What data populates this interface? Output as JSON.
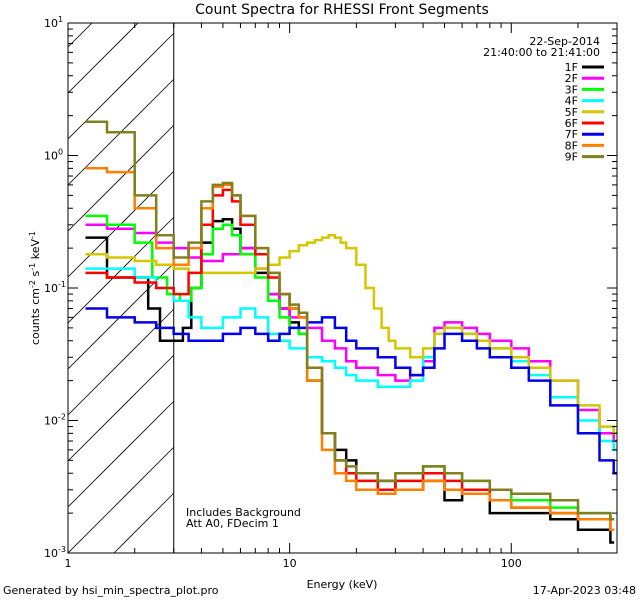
{
  "chart_data": {
    "type": "line",
    "title": "Count Spectra for RHESSI Front Segments",
    "xlabel": "Energy (keV)",
    "ylabel": {
      "base": "counts cm",
      "sup1": "-2",
      "mid1": " s",
      "sup2": "-1",
      "mid2": " keV",
      "sup3": "-1"
    },
    "x_scale": "log",
    "y_scale": "log",
    "xlim": [
      1.0,
      300.0
    ],
    "ylim": [
      0.001,
      10.0
    ],
    "x_major_ticks": [
      1,
      10,
      100
    ],
    "x_tick_labels": [
      "1",
      "10",
      "100"
    ],
    "y_major_ticks": [
      0.001,
      0.01,
      0.1,
      1,
      10
    ],
    "y_tick_labels": [
      {
        "base": "10",
        "exp": "-3"
      },
      {
        "base": "10",
        "exp": "-2"
      },
      {
        "base": "10",
        "exp": "-1"
      },
      {
        "base": "10",
        "exp": "0"
      },
      {
        "base": "10",
        "exp": "1"
      }
    ],
    "hatched_region_keV": [
      1.0,
      3.0
    ],
    "date": "22-Sep-2014",
    "time_range": "21:40:00 to 21:41:00",
    "annotation_lines": [
      "Includes Background",
      "Att A0, FDecim 1"
    ],
    "series": [
      {
        "name": "1F",
        "color": "#000000",
        "points": [
          [
            1.2,
            0.24
          ],
          [
            1.5,
            0.12
          ],
          [
            2,
            0.12
          ],
          [
            2.3,
            0.07
          ],
          [
            2.6,
            0.04
          ],
          [
            2.9,
            0.04
          ],
          [
            3.3,
            0.05
          ],
          [
            3.6,
            0.1
          ],
          [
            4,
            0.22
          ],
          [
            4.5,
            0.32
          ],
          [
            5,
            0.33
          ],
          [
            5.5,
            0.28
          ],
          [
            6,
            0.2
          ],
          [
            7,
            0.13
          ],
          [
            8,
            0.09
          ],
          [
            9,
            0.07
          ],
          [
            10,
            0.055
          ],
          [
            11,
            0.045
          ],
          [
            12,
            0.02
          ],
          [
            14,
            0.008
          ],
          [
            16,
            0.006
          ],
          [
            18,
            0.005
          ],
          [
            20,
            0.004
          ],
          [
            25,
            0.0035
          ],
          [
            30,
            0.003
          ],
          [
            40,
            0.0035
          ],
          [
            50,
            0.0025
          ],
          [
            60,
            0.003
          ],
          [
            80,
            0.002
          ],
          [
            100,
            0.002
          ],
          [
            150,
            0.0018
          ],
          [
            200,
            0.0015
          ],
          [
            280,
            0.0012
          ]
        ]
      },
      {
        "name": "2F",
        "color": "#ff00ff",
        "points": [
          [
            1.2,
            0.3
          ],
          [
            1.5,
            0.28
          ],
          [
            2,
            0.26
          ],
          [
            2.5,
            0.22
          ],
          [
            3,
            0.2
          ],
          [
            3.5,
            0.17
          ],
          [
            4,
            0.16
          ],
          [
            5,
            0.18
          ],
          [
            6,
            0.2
          ],
          [
            7,
            0.14
          ],
          [
            8,
            0.09
          ],
          [
            9,
            0.07
          ],
          [
            10,
            0.06
          ],
          [
            12,
            0.05
          ],
          [
            14,
            0.04
          ],
          [
            16,
            0.035
          ],
          [
            18,
            0.028
          ],
          [
            20,
            0.025
          ],
          [
            25,
            0.022
          ],
          [
            30,
            0.02
          ],
          [
            35,
            0.022
          ],
          [
            40,
            0.028
          ],
          [
            45,
            0.05
          ],
          [
            50,
            0.055
          ],
          [
            60,
            0.05
          ],
          [
            70,
            0.045
          ],
          [
            80,
            0.04
          ],
          [
            100,
            0.035
          ],
          [
            120,
            0.028
          ],
          [
            150,
            0.02
          ],
          [
            200,
            0.012
          ],
          [
            250,
            0.008
          ],
          [
            290,
            0.007
          ]
        ]
      },
      {
        "name": "3F",
        "color": "#00ff00",
        "points": [
          [
            1.2,
            0.35
          ],
          [
            1.5,
            0.3
          ],
          [
            2,
            0.22
          ],
          [
            2.4,
            0.12
          ],
          [
            2.8,
            0.09
          ],
          [
            3.2,
            0.08
          ],
          [
            3.6,
            0.1
          ],
          [
            4,
            0.18
          ],
          [
            4.5,
            0.28
          ],
          [
            5,
            0.3
          ],
          [
            5.5,
            0.25
          ],
          [
            6,
            0.18
          ],
          [
            7,
            0.12
          ],
          [
            8,
            0.08
          ],
          [
            9,
            0.06
          ],
          [
            10,
            0.05
          ],
          [
            11,
            0.045
          ],
          [
            12,
            0.02
          ],
          [
            14,
            0.008
          ],
          [
            16,
            0.005
          ],
          [
            18,
            0.004
          ],
          [
            20,
            0.0035
          ],
          [
            25,
            0.003
          ],
          [
            30,
            0.0035
          ],
          [
            40,
            0.0045
          ],
          [
            50,
            0.004
          ],
          [
            60,
            0.0035
          ],
          [
            80,
            0.003
          ],
          [
            100,
            0.0025
          ],
          [
            150,
            0.0022
          ],
          [
            200,
            0.002
          ],
          [
            280,
            0.0018
          ]
        ]
      },
      {
        "name": "4F",
        "color": "#00ffff",
        "points": [
          [
            1.2,
            0.14
          ],
          [
            1.5,
            0.14
          ],
          [
            2,
            0.12
          ],
          [
            2.5,
            0.1
          ],
          [
            3,
            0.08
          ],
          [
            3.5,
            0.06
          ],
          [
            4,
            0.05
          ],
          [
            5,
            0.06
          ],
          [
            6,
            0.07
          ],
          [
            7,
            0.06
          ],
          [
            8,
            0.045
          ],
          [
            9,
            0.04
          ],
          [
            10,
            0.035
          ],
          [
            12,
            0.03
          ],
          [
            14,
            0.028
          ],
          [
            16,
            0.025
          ],
          [
            18,
            0.022
          ],
          [
            20,
            0.02
          ],
          [
            25,
            0.018
          ],
          [
            30,
            0.018
          ],
          [
            35,
            0.02
          ],
          [
            40,
            0.03
          ],
          [
            45,
            0.045
          ],
          [
            50,
            0.05
          ],
          [
            60,
            0.045
          ],
          [
            70,
            0.04
          ],
          [
            80,
            0.035
          ],
          [
            100,
            0.028
          ],
          [
            120,
            0.022
          ],
          [
            150,
            0.015
          ],
          [
            200,
            0.01
          ],
          [
            250,
            0.007
          ],
          [
            290,
            0.006
          ]
        ]
      },
      {
        "name": "5F",
        "color": "#d4c700",
        "points": [
          [
            1.2,
            0.18
          ],
          [
            1.5,
            0.17
          ],
          [
            2,
            0.16
          ],
          [
            2.5,
            0.15
          ],
          [
            3,
            0.14
          ],
          [
            3.5,
            0.13
          ],
          [
            4,
            0.13
          ],
          [
            5,
            0.13
          ],
          [
            6,
            0.13
          ],
          [
            7,
            0.14
          ],
          [
            8,
            0.15
          ],
          [
            9,
            0.17
          ],
          [
            10,
            0.19
          ],
          [
            11,
            0.21
          ],
          [
            12,
            0.22
          ],
          [
            13,
            0.23
          ],
          [
            14,
            0.24
          ],
          [
            15,
            0.25
          ],
          [
            16,
            0.24
          ],
          [
            17,
            0.22
          ],
          [
            18,
            0.2
          ],
          [
            20,
            0.15
          ],
          [
            22,
            0.1
          ],
          [
            24,
            0.07
          ],
          [
            26,
            0.05
          ],
          [
            28,
            0.04
          ],
          [
            30,
            0.035
          ],
          [
            35,
            0.03
          ],
          [
            40,
            0.035
          ],
          [
            45,
            0.045
          ],
          [
            50,
            0.05
          ],
          [
            60,
            0.045
          ],
          [
            70,
            0.04
          ],
          [
            80,
            0.035
          ],
          [
            100,
            0.03
          ],
          [
            120,
            0.025
          ],
          [
            150,
            0.02
          ],
          [
            200,
            0.013
          ],
          [
            250,
            0.009
          ],
          [
            290,
            0.008
          ]
        ]
      },
      {
        "name": "6F",
        "color": "#ff0000",
        "points": [
          [
            1.2,
            0.13
          ],
          [
            1.5,
            0.12
          ],
          [
            2,
            0.11
          ],
          [
            2.5,
            0.1
          ],
          [
            3,
            0.09
          ],
          [
            3.5,
            0.13
          ],
          [
            4,
            0.3
          ],
          [
            4.5,
            0.5
          ],
          [
            5,
            0.55
          ],
          [
            5.5,
            0.45
          ],
          [
            6,
            0.3
          ],
          [
            7,
            0.18
          ],
          [
            8,
            0.12
          ],
          [
            9,
            0.09
          ],
          [
            10,
            0.07
          ],
          [
            11,
            0.06
          ],
          [
            12,
            0.025
          ],
          [
            14,
            0.008
          ],
          [
            16,
            0.005
          ],
          [
            18,
            0.004
          ],
          [
            20,
            0.0035
          ],
          [
            25,
            0.003
          ],
          [
            30,
            0.0035
          ],
          [
            40,
            0.004
          ],
          [
            50,
            0.0035
          ],
          [
            60,
            0.003
          ],
          [
            80,
            0.0025
          ],
          [
            100,
            0.0022
          ],
          [
            150,
            0.002
          ],
          [
            200,
            0.0018
          ],
          [
            280,
            0.0015
          ]
        ]
      },
      {
        "name": "7F",
        "color": "#0000ee",
        "points": [
          [
            1.2,
            0.07
          ],
          [
            1.5,
            0.06
          ],
          [
            2,
            0.055
          ],
          [
            2.5,
            0.05
          ],
          [
            3,
            0.045
          ],
          [
            3.5,
            0.04
          ],
          [
            4,
            0.04
          ],
          [
            5,
            0.045
          ],
          [
            6,
            0.05
          ],
          [
            7,
            0.045
          ],
          [
            8,
            0.04
          ],
          [
            9,
            0.045
          ],
          [
            10,
            0.05
          ],
          [
            12,
            0.055
          ],
          [
            14,
            0.06
          ],
          [
            16,
            0.05
          ],
          [
            18,
            0.04
          ],
          [
            20,
            0.035
          ],
          [
            25,
            0.03
          ],
          [
            30,
            0.025
          ],
          [
            35,
            0.022
          ],
          [
            40,
            0.025
          ],
          [
            45,
            0.035
          ],
          [
            50,
            0.045
          ],
          [
            60,
            0.04
          ],
          [
            70,
            0.035
          ],
          [
            80,
            0.03
          ],
          [
            100,
            0.025
          ],
          [
            120,
            0.02
          ],
          [
            150,
            0.013
          ],
          [
            200,
            0.008
          ],
          [
            250,
            0.005
          ],
          [
            290,
            0.004
          ]
        ]
      },
      {
        "name": "8F",
        "color": "#ff8000",
        "points": [
          [
            1.2,
            0.8
          ],
          [
            1.5,
            0.75
          ],
          [
            2,
            0.4
          ],
          [
            2.5,
            0.2
          ],
          [
            3,
            0.15
          ],
          [
            3.5,
            0.2
          ],
          [
            4,
            0.4
          ],
          [
            4.5,
            0.58
          ],
          [
            5,
            0.6
          ],
          [
            5.5,
            0.5
          ],
          [
            6,
            0.35
          ],
          [
            7,
            0.2
          ],
          [
            8,
            0.13
          ],
          [
            9,
            0.09
          ],
          [
            10,
            0.07
          ],
          [
            11,
            0.06
          ],
          [
            12,
            0.02
          ],
          [
            14,
            0.006
          ],
          [
            16,
            0.004
          ],
          [
            18,
            0.0035
          ],
          [
            20,
            0.003
          ],
          [
            25,
            0.0028
          ],
          [
            30,
            0.003
          ],
          [
            40,
            0.0035
          ],
          [
            50,
            0.003
          ],
          [
            60,
            0.0028
          ],
          [
            80,
            0.0025
          ],
          [
            100,
            0.0022
          ],
          [
            150,
            0.002
          ],
          [
            200,
            0.0018
          ],
          [
            280,
            0.0015
          ]
        ]
      },
      {
        "name": "9F",
        "color": "#808020",
        "points": [
          [
            1.2,
            1.8
          ],
          [
            1.5,
            1.5
          ],
          [
            2,
            0.5
          ],
          [
            2.5,
            0.25
          ],
          [
            3,
            0.17
          ],
          [
            3.5,
            0.22
          ],
          [
            4,
            0.45
          ],
          [
            4.5,
            0.6
          ],
          [
            5,
            0.62
          ],
          [
            5.5,
            0.5
          ],
          [
            6,
            0.35
          ],
          [
            7,
            0.2
          ],
          [
            8,
            0.13
          ],
          [
            9,
            0.09
          ],
          [
            10,
            0.075
          ],
          [
            11,
            0.065
          ],
          [
            12,
            0.025
          ],
          [
            14,
            0.008
          ],
          [
            16,
            0.005
          ],
          [
            18,
            0.0045
          ],
          [
            20,
            0.004
          ],
          [
            25,
            0.0035
          ],
          [
            30,
            0.004
          ],
          [
            40,
            0.0045
          ],
          [
            50,
            0.004
          ],
          [
            60,
            0.0035
          ],
          [
            80,
            0.003
          ],
          [
            100,
            0.0028
          ],
          [
            150,
            0.0025
          ],
          [
            200,
            0.002
          ],
          [
            280,
            0.0018
          ]
        ]
      }
    ]
  },
  "footer": {
    "generated_by": "Generated by hsi_min_spectra_plot.pro",
    "timestamp": "17-Apr-2023 03:48"
  }
}
